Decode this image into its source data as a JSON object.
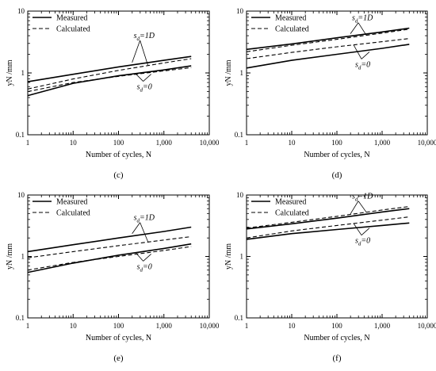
{
  "figure": {
    "x_ticks": [
      "1",
      "10",
      "100",
      "1,000",
      "10,000"
    ],
    "y_ticks": [
      "0.1",
      "1",
      "10"
    ]
  },
  "chart_data": [
    {
      "type": "line",
      "panel_label": "(c)",
      "xlabel": "Number of cycles, N",
      "ylabel": "yN /mm",
      "xscale": "log",
      "yscale": "log",
      "xlim": [
        1,
        10000
      ],
      "ylim": [
        0.1,
        10
      ],
      "legend": {
        "placement": "top-left",
        "entries": [
          {
            "name": "Measured",
            "style": "solid"
          },
          {
            "name": "Calculated",
            "style": "dashed"
          }
        ]
      },
      "annotations": [
        "sd=1D",
        "sd=0"
      ],
      "series": [
        {
          "name": "Measured",
          "group": "sd=1D",
          "style": "solid",
          "x": [
            1,
            10,
            100,
            1000,
            4000
          ],
          "y": [
            0.72,
            0.95,
            1.25,
            1.6,
            1.85
          ]
        },
        {
          "name": "Calculated",
          "group": "sd=1D",
          "style": "dashed",
          "x": [
            1,
            10,
            100,
            1000,
            4000
          ],
          "y": [
            0.55,
            0.8,
            1.1,
            1.45,
            1.7
          ]
        },
        {
          "name": "Measured",
          "group": "sd=0",
          "style": "solid",
          "x": [
            1,
            10,
            100,
            1000,
            4000
          ],
          "y": [
            0.43,
            0.68,
            0.9,
            1.12,
            1.3
          ]
        },
        {
          "name": "Calculated",
          "group": "sd=0",
          "style": "dashed",
          "x": [
            1,
            10,
            100,
            1000,
            4000
          ],
          "y": [
            0.5,
            0.7,
            0.88,
            1.08,
            1.22
          ]
        }
      ]
    },
    {
      "type": "line",
      "panel_label": "(d)",
      "xlabel": "Number of cycles, N",
      "ylabel": "yN /mm",
      "xscale": "log",
      "yscale": "log",
      "xlim": [
        1,
        10000
      ],
      "ylim": [
        0.1,
        10
      ],
      "legend": {
        "placement": "top-left",
        "entries": [
          {
            "name": "Measured",
            "style": "solid"
          },
          {
            "name": "Calculated",
            "style": "dashed"
          }
        ]
      },
      "annotations": [
        "sd=1D",
        "sd=0"
      ],
      "series": [
        {
          "name": "Measured",
          "group": "sd=1D",
          "style": "solid",
          "x": [
            1,
            10,
            100,
            1000,
            4000
          ],
          "y": [
            2.4,
            2.95,
            3.7,
            4.6,
            5.3
          ]
        },
        {
          "name": "Calculated",
          "group": "sd=1D",
          "style": "dashed",
          "x": [
            1,
            10,
            100,
            1000,
            4000
          ],
          "y": [
            2.2,
            2.8,
            3.5,
            4.4,
            5.1
          ]
        },
        {
          "name": "Calculated",
          "group": "sd=0",
          "style": "dashed",
          "x": [
            1,
            10,
            100,
            1000,
            4000
          ],
          "y": [
            1.7,
            2.15,
            2.65,
            3.2,
            3.6
          ]
        },
        {
          "name": "Measured",
          "group": "sd=0",
          "style": "solid",
          "x": [
            1,
            10,
            100,
            1000,
            4000
          ],
          "y": [
            1.2,
            1.6,
            2.0,
            2.5,
            2.9
          ]
        }
      ]
    },
    {
      "type": "line",
      "panel_label": "(e)",
      "xlabel": "Number of cycles, N",
      "ylabel": "yN /mm",
      "xscale": "log",
      "yscale": "log",
      "xlim": [
        1,
        10000
      ],
      "ylim": [
        0.1,
        10
      ],
      "legend": {
        "placement": "top-left",
        "entries": [
          {
            "name": "Measured",
            "style": "solid"
          },
          {
            "name": "Calculated",
            "style": "dashed"
          }
        ]
      },
      "annotations": [
        "sd=1D",
        "sd=0"
      ],
      "series": [
        {
          "name": "Measured",
          "group": "sd=1D",
          "style": "solid",
          "x": [
            1,
            10,
            100,
            1000,
            4000
          ],
          "y": [
            1.2,
            1.55,
            2.0,
            2.55,
            3.0
          ]
        },
        {
          "name": "Calculated",
          "group": "sd=1D",
          "style": "dashed",
          "x": [
            1,
            10,
            100,
            1000,
            4000
          ],
          "y": [
            0.95,
            1.2,
            1.5,
            1.85,
            2.1
          ]
        },
        {
          "name": "Measured",
          "group": "sd=0",
          "style": "solid",
          "x": [
            1,
            10,
            100,
            1000,
            4000
          ],
          "y": [
            0.55,
            0.78,
            1.05,
            1.35,
            1.6
          ]
        },
        {
          "name": "Calculated",
          "group": "sd=0",
          "style": "dashed",
          "x": [
            1,
            10,
            100,
            1000,
            4000
          ],
          "y": [
            0.6,
            0.8,
            1.0,
            1.25,
            1.45
          ]
        }
      ]
    },
    {
      "type": "line",
      "panel_label": "(f)",
      "xlabel": "Number of cycles, N",
      "ylabel": "yN /mm",
      "xscale": "log",
      "yscale": "log",
      "xlim": [
        1,
        10000
      ],
      "ylim": [
        0.1,
        10
      ],
      "legend": {
        "placement": "top-left",
        "entries": [
          {
            "name": "Measured",
            "style": "solid"
          },
          {
            "name": "Calculated",
            "style": "dashed"
          }
        ]
      },
      "annotations": [
        "sd=1D",
        "sd=0"
      ],
      "series": [
        {
          "name": "Measured",
          "group": "sd=1D",
          "style": "solid",
          "x": [
            1,
            10,
            100,
            1000,
            4000
          ],
          "y": [
            2.8,
            3.4,
            4.2,
            5.3,
            6.0
          ]
        },
        {
          "name": "Calculated",
          "group": "sd=1D",
          "style": "dashed",
          "x": [
            1,
            10,
            100,
            1000,
            4000
          ],
          "y": [
            2.9,
            3.6,
            4.5,
            5.7,
            6.5
          ]
        },
        {
          "name": "Calculated",
          "group": "sd=0",
          "style": "dashed",
          "x": [
            1,
            10,
            100,
            1000,
            4000
          ],
          "y": [
            2.0,
            2.6,
            3.2,
            3.9,
            4.4
          ]
        },
        {
          "name": "Measured",
          "group": "sd=0",
          "style": "solid",
          "x": [
            1,
            10,
            100,
            1000,
            4000
          ],
          "y": [
            1.9,
            2.35,
            2.75,
            3.2,
            3.5
          ]
        }
      ]
    }
  ]
}
